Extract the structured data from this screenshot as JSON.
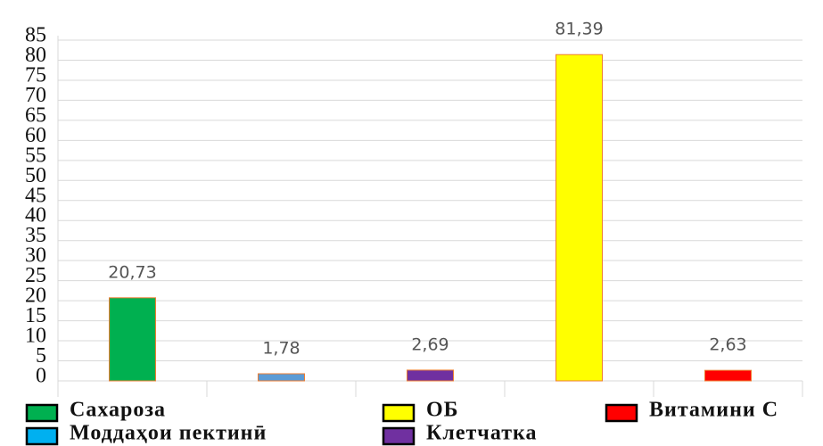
{
  "chart_data": {
    "type": "bar",
    "categories": [
      "Сахароза",
      "Моддаҳои пектинӣ",
      "Клетчатка",
      "ОБ",
      "Витамини С"
    ],
    "values": [
      20.73,
      1.78,
      2.69,
      81.39,
      2.63
    ],
    "value_labels": [
      "20,73",
      "1,78",
      "2,69",
      "81,39",
      "2,63"
    ],
    "colors": [
      "#00b050",
      "#5b9bd5",
      "#7030a0",
      "#ffff00",
      "#ff0000"
    ],
    "ylim": [
      0,
      85
    ],
    "yticks": [
      0,
      5,
      10,
      15,
      20,
      25,
      30,
      35,
      40,
      45,
      50,
      55,
      60,
      65,
      70,
      75,
      80,
      85
    ],
    "grid": true
  }
}
